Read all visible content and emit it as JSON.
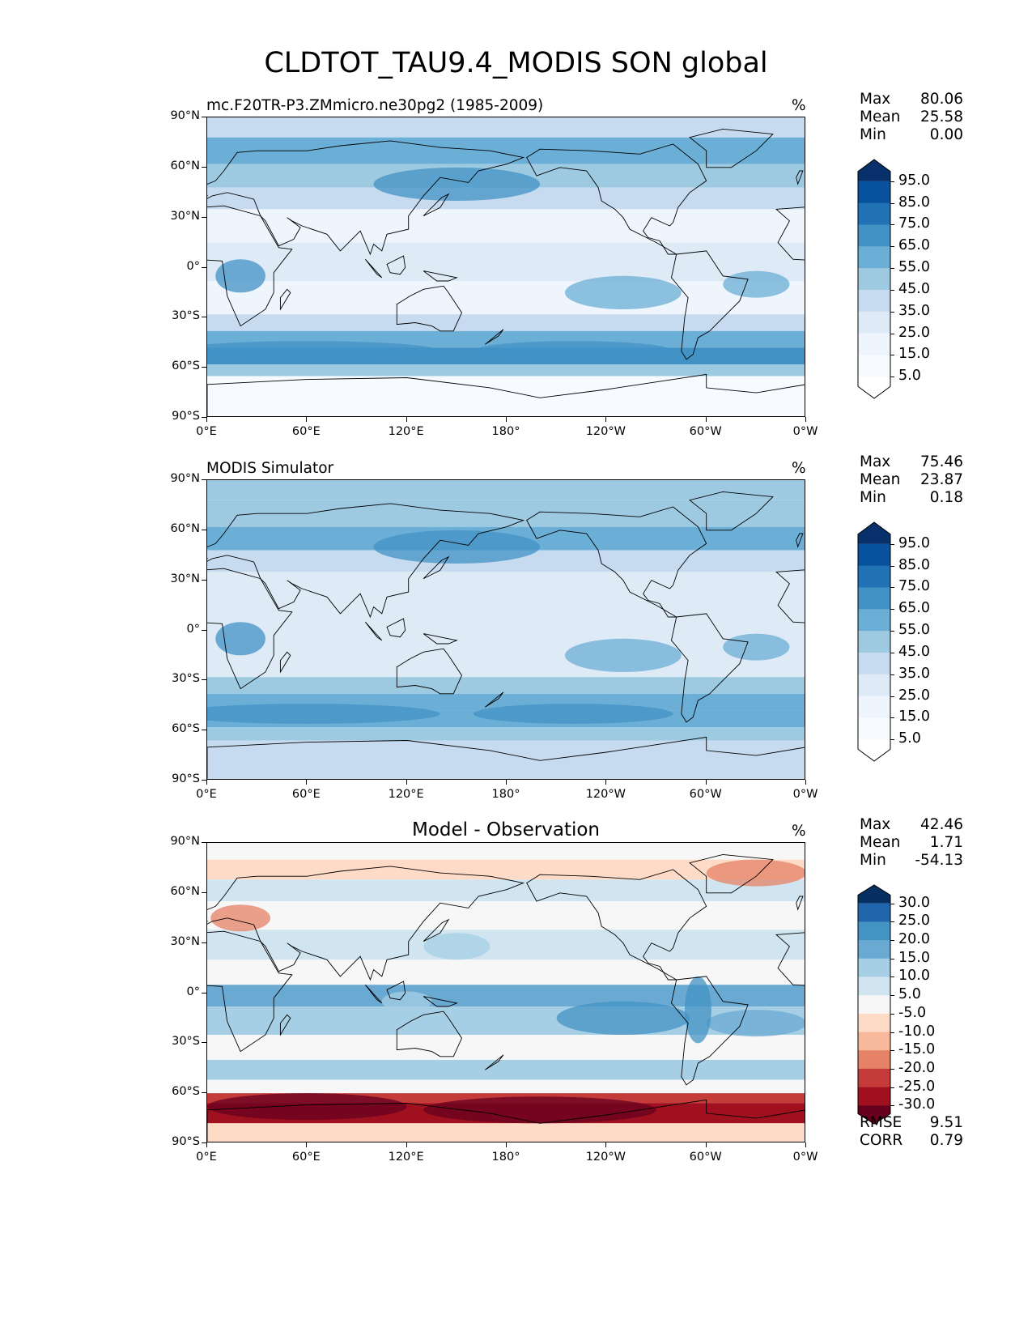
{
  "figure": {
    "title": "CLDTOT_TAU9.4_MODIS SON global"
  },
  "axes": {
    "lat_ticks": [
      "90°N",
      "60°N",
      "30°N",
      "0°",
      "30°S",
      "60°S",
      "90°S"
    ],
    "lon_ticks": [
      "0°E",
      "60°E",
      "120°E",
      "180°",
      "120°W",
      "60°W",
      "0°W"
    ]
  },
  "panels": [
    {
      "id": "test",
      "title_left": "mc.F20TR-P3.ZMmicro.ne30pg2 (1985-2009)",
      "title_center": "",
      "units": "%",
      "stats": [
        {
          "label": "Max",
          "value": "80.06"
        },
        {
          "label": "Mean",
          "value": "25.58"
        },
        {
          "label": "Min",
          "value": "0.00"
        }
      ],
      "colorbar": {
        "labels": [
          "95.0",
          "85.0",
          "75.0",
          "65.0",
          "55.0",
          "45.0",
          "35.0",
          "25.0",
          "15.0",
          "5.0"
        ],
        "colors": [
          "#08306b",
          "#08519c",
          "#2171b5",
          "#4292c6",
          "#6baed6",
          "#9ecae1",
          "#c6dbef",
          "#deebf7",
          "#eef5fc",
          "#f7fbff",
          "#ffffff"
        ]
      },
      "extra_stats": []
    },
    {
      "id": "reference",
      "title_left": "MODIS Simulator",
      "title_center": "",
      "units": "%",
      "stats": [
        {
          "label": "Max",
          "value": "75.46"
        },
        {
          "label": "Mean",
          "value": "23.87"
        },
        {
          "label": "Min",
          "value": "0.18"
        }
      ],
      "colorbar": {
        "labels": [
          "95.0",
          "85.0",
          "75.0",
          "65.0",
          "55.0",
          "45.0",
          "35.0",
          "25.0",
          "15.0",
          "5.0"
        ],
        "colors": [
          "#08306b",
          "#08519c",
          "#2171b5",
          "#4292c6",
          "#6baed6",
          "#9ecae1",
          "#c6dbef",
          "#deebf7",
          "#eef5fc",
          "#f7fbff",
          "#ffffff"
        ]
      },
      "extra_stats": []
    },
    {
      "id": "diff",
      "title_left": "",
      "title_center": "Model - Observation",
      "units": "%",
      "stats": [
        {
          "label": "Max",
          "value": "42.46"
        },
        {
          "label": "Mean",
          "value": "1.71"
        },
        {
          "label": "Min",
          "value": "-54.13"
        }
      ],
      "colorbar": {
        "labels": [
          "30.0",
          "25.0",
          "20.0",
          "15.0",
          "10.0",
          "5.0",
          "-5.0",
          "-10.0",
          "-15.0",
          "-20.0",
          "-25.0",
          "-30.0"
        ],
        "colors": [
          "#053061",
          "#2166ac",
          "#4393c3",
          "#6aa9d2",
          "#a6cfe5",
          "#d1e5f0",
          "#f7f7f7",
          "#fddbc7",
          "#f7b89b",
          "#e58267",
          "#c43b3a",
          "#a0101f",
          "#67001f"
        ]
      },
      "extra_stats": [
        {
          "label": "RMSE",
          "value": "9.51"
        },
        {
          "label": "CORR",
          "value": "0.79"
        }
      ]
    }
  ],
  "colors": {
    "land_outline": "#000000",
    "frame": "#000000"
  }
}
